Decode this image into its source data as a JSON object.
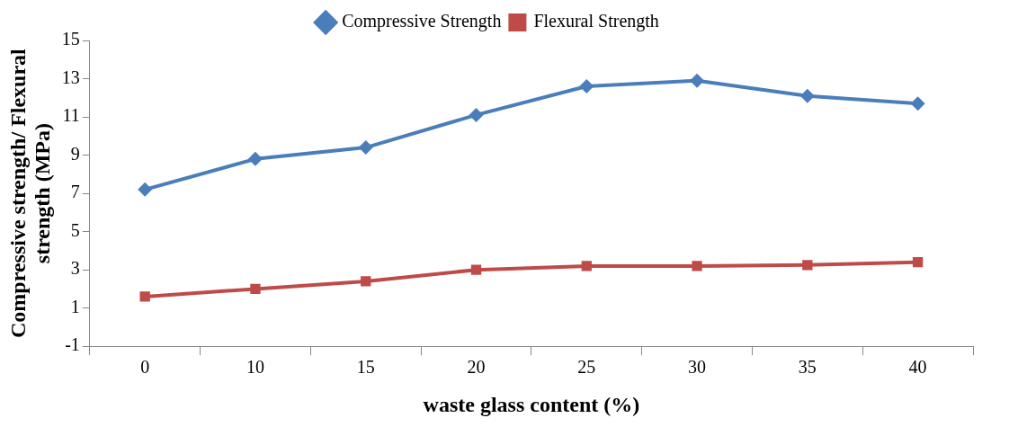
{
  "chart_data": {
    "type": "line",
    "xlabel": "waste glass content (%)",
    "ylabel": "Compressive strength/ Flexural strength (MPa)",
    "categories": [
      "0",
      "10",
      "15",
      "20",
      "25",
      "30",
      "35",
      "40"
    ],
    "series": [
      {
        "name": "Compressive Strength",
        "color": "#4a7ebb",
        "marker": "diamond",
        "values": [
          7.2,
          8.8,
          9.4,
          11.1,
          12.6,
          12.9,
          12.1,
          11.7
        ]
      },
      {
        "name": "Flexural Strength",
        "color": "#be4b48",
        "marker": "square",
        "values": [
          1.6,
          2.0,
          2.4,
          3.0,
          3.2,
          3.2,
          3.25,
          3.4
        ]
      }
    ],
    "ylim": [
      -1,
      15
    ],
    "yticks": [
      -1,
      1,
      3,
      5,
      7,
      9,
      11,
      13,
      15
    ],
    "grid": false,
    "legend": "top",
    "line_style": "solid"
  }
}
